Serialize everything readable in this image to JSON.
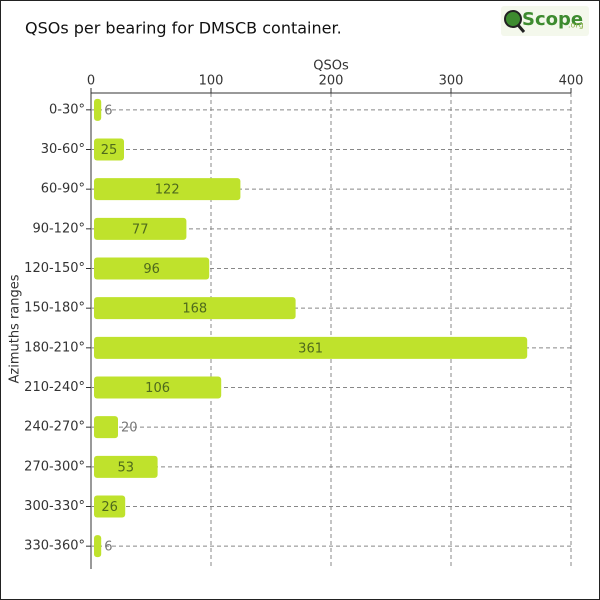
{
  "chart_data": {
    "type": "barh",
    "title": "QSOs per bearing for DMSCB container.",
    "logo": {
      "text": "Scope",
      "suffix": ".org"
    },
    "x_label": "QSOs",
    "y_label": "Azimuths ranges",
    "categories": [
      "0-30°",
      "30-60°",
      "60-90°",
      "90-120°",
      "120-150°",
      "150-180°",
      "180-210°",
      "210-240°",
      "240-270°",
      "270-300°",
      "300-330°",
      "330-360°"
    ],
    "values": [
      6,
      25,
      122,
      77,
      96,
      168,
      361,
      106,
      20,
      53,
      26,
      6
    ],
    "color": "#bfe22c",
    "xlim": [
      0,
      400
    ],
    "xticks": [
      0,
      100,
      200,
      300,
      400
    ],
    "grid": true
  }
}
